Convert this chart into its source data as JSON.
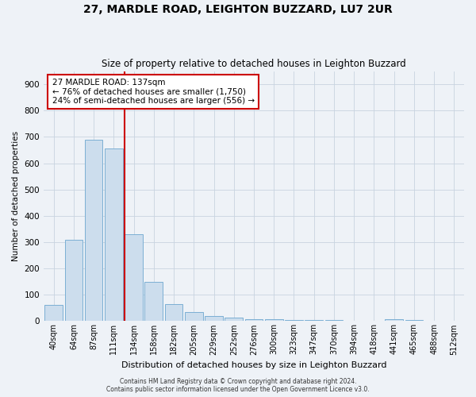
{
  "title_line1": "27, MARDLE ROAD, LEIGHTON BUZZARD, LU7 2UR",
  "title_line2": "Size of property relative to detached houses in Leighton Buzzard",
  "xlabel": "Distribution of detached houses by size in Leighton Buzzard",
  "ylabel": "Number of detached properties",
  "footer_line1": "Contains HM Land Registry data © Crown copyright and database right 2024.",
  "footer_line2": "Contains public sector information licensed under the Open Government Licence v3.0.",
  "categories": [
    "40sqm",
    "64sqm",
    "87sqm",
    "111sqm",
    "134sqm",
    "158sqm",
    "182sqm",
    "205sqm",
    "229sqm",
    "252sqm",
    "276sqm",
    "300sqm",
    "323sqm",
    "347sqm",
    "370sqm",
    "394sqm",
    "418sqm",
    "441sqm",
    "465sqm",
    "488sqm",
    "512sqm"
  ],
  "values": [
    63,
    310,
    690,
    655,
    330,
    150,
    65,
    35,
    20,
    12,
    8,
    6,
    5,
    4,
    3,
    2,
    1,
    8,
    4,
    1,
    1
  ],
  "bar_color": "#ccdded",
  "bar_edge_color": "#7bafd4",
  "red_line_index": 4,
  "annotation_title": "27 MARDLE ROAD: 137sqm",
  "annotation_line2": "← 76% of detached houses are smaller (1,750)",
  "annotation_line3": "24% of semi-detached houses are larger (556) →",
  "annotation_box_color": "#ffffff",
  "annotation_box_edge": "#cc0000",
  "red_line_color": "#cc0000",
  "ylim": [
    0,
    950
  ],
  "yticks": [
    0,
    100,
    200,
    300,
    400,
    500,
    600,
    700,
    800,
    900
  ],
  "grid_color": "#c8d4e0",
  "background_color": "#eef2f7",
  "title_fontsize": 10,
  "subtitle_fontsize": 8.5
}
